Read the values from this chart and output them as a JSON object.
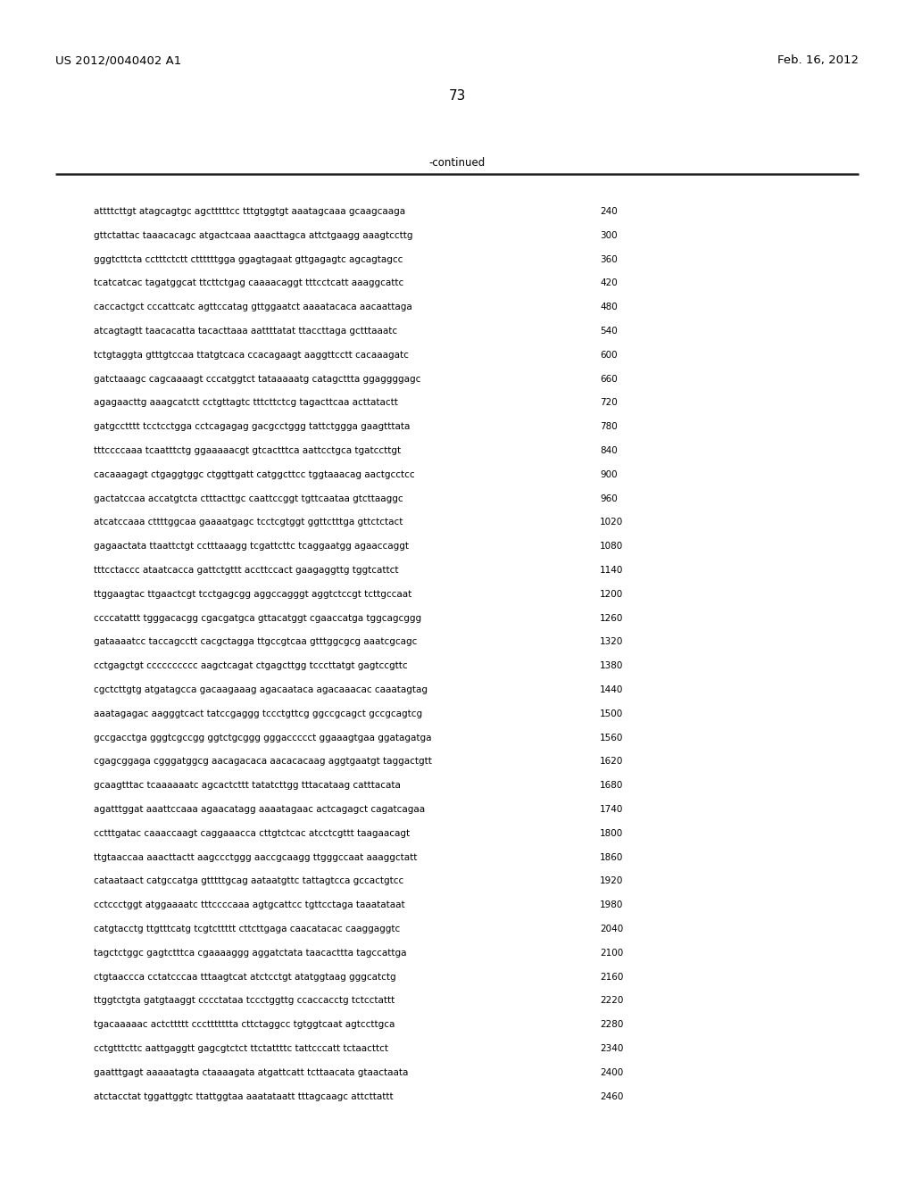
{
  "header_left": "US 2012/0040402 A1",
  "header_right": "Feb. 16, 2012",
  "page_number": "73",
  "continued_label": "-continued",
  "background_color": "#ffffff",
  "text_color": "#000000",
  "seq_font_size": 7.5,
  "header_font_size": 9.5,
  "page_num_font_size": 11,
  "continued_font_size": 8.5,
  "sequence_lines": [
    [
      "attttcttgt atagcagtgc agctttttcc tttgtggtgt aaatagcaaa gcaagcaaga",
      "240"
    ],
    [
      "gttctattac taaacacagc atgactcaaa aaacttagca attctgaagg aaagtccttg",
      "300"
    ],
    [
      "gggtcttcta cctttctctt cttttttgga ggagtagaat gttgagagtc agcagtagcc",
      "360"
    ],
    [
      "tcatcatcac tagatggcat ttcttctgag caaaacaggt tttcctcatt aaaggcattc",
      "420"
    ],
    [
      "caccactgct cccattcatc agttccatag gttggaatct aaaatacaca aacaattaga",
      "480"
    ],
    [
      "atcagtagtt taacacatta tacacttaaa aattttatat ttaccttaga gctttaaatc",
      "540"
    ],
    [
      "tctgtaggta gtttgtccaa ttatgtcaca ccacagaagt aaggttcctt cacaaagatc",
      "600"
    ],
    [
      "gatctaaagc cagcaaaagt cccatggtct tataaaaatg catagcttta ggaggggagc",
      "660"
    ],
    [
      "agagaacttg aaagcatctt cctgttagtc tttcttctcg tagacttcaa acttatactt",
      "720"
    ],
    [
      "gatgcctttt tcctcctgga cctcagagag gacgcctggg tattctggga gaagtttata",
      "780"
    ],
    [
      "tttccccaaa tcaatttctg ggaaaaacgt gtcactttca aattcctgca tgatccttgt",
      "840"
    ],
    [
      "cacaaagagt ctgaggtggc ctggttgatt catggcttcc tggtaaacag aactgcctcc",
      "900"
    ],
    [
      "gactatccaa accatgtcta ctttacttgc caattccggt tgttcaataa gtcttaaggc",
      "960"
    ],
    [
      "atcatccaaa cttttggcaa gaaaatgagc tcctcgtggt ggttctttga gttctctact",
      "1020"
    ],
    [
      "gagaactata ttaattctgt cctttaaagg tcgattcttc tcaggaatgg agaaccaggt",
      "1080"
    ],
    [
      "tttcctaccc ataatcacca gattctgttt accttccact gaagaggttg tggtcattct",
      "1140"
    ],
    [
      "ttggaagtac ttgaactcgt tcctgagcgg aggccagggt aggtctccgt tcttgccaat",
      "1200"
    ],
    [
      "ccccatattt tgggacacgg cgacgatgca gttacatggt cgaaccatga tggcagcggg",
      "1260"
    ],
    [
      "gataaaatcc taccagcctt cacgctagga ttgccgtcaa gtttggcgcg aaatcgcagc",
      "1320"
    ],
    [
      "cctgagctgt cccccccccc aagctcagat ctgagcttgg tcccttatgt gagtccgttc",
      "1380"
    ],
    [
      "cgctcttgtg atgatagcca gacaagaaag agacaataca agacaaacac caaatagtag",
      "1440"
    ],
    [
      "aaatagagac aagggtcact tatccgaggg tccctgttcg ggccgcagct gccgcagtcg",
      "1500"
    ],
    [
      "gccgacctga gggtcgccgg ggtctgcggg gggaccccct ggaaagtgaa ggatagatga",
      "1560"
    ],
    [
      "cgagcggaga cgggatggcg aacagacaca aacacacaag aggtgaatgt taggactgtt",
      "1620"
    ],
    [
      "gcaagtttac tcaaaaaatc agcactcttt tatatcttgg tttacataag catttacata",
      "1680"
    ],
    [
      "agatttggat aaattccaaa agaacatagg aaaatagaac actcagagct cagatcagaa",
      "1740"
    ],
    [
      "cctttgatac caaaccaagt caggaaacca cttgtctcac atcctcgttt taagaacagt",
      "1800"
    ],
    [
      "ttgtaaccaa aaacttactt aagccctggg aaccgcaagg ttgggccaat aaaggctatt",
      "1860"
    ],
    [
      "cataataact catgccatga gtttttgcag aataatgttc tattagtcca gccactgtcc",
      "1920"
    ],
    [
      "cctccctggt atggaaaatc tttccccaaa agtgcattcc tgttcctaga taaatataat",
      "1980"
    ],
    [
      "catgtacctg ttgtttcatg tcgtcttttt cttcttgaga caacatacac caaggaggtc",
      "2040"
    ],
    [
      "tagctctggc gagtctttca cgaaaaggg aggatctata taacacttta tagccattga",
      "2100"
    ],
    [
      "ctgtaaccca cctatcccaa tttaagtcat atctcctgt atatggtaag gggcatctg",
      "2160"
    ],
    [
      "ttggtctgta gatgtaaggt cccctataa tccctggttg ccaccacctg tctcctattt",
      "2220"
    ],
    [
      "tgacaaaaac actcttttt cccttttttta cttctaggcc tgtggtcaat agtccttgca",
      "2280"
    ],
    [
      "cctgtttcttc aattgaggtt gagcgtctct ttctattttc tattcccatt tctaacttct",
      "2340"
    ],
    [
      "gaatttgagt aaaaatagta ctaaaagata atgattcatt tcttaacata gtaactaata",
      "2400"
    ],
    [
      "atctacctat tggattggtc ttattggtaa aaatataatt tttagcaagc attcttattt",
      "2460"
    ]
  ]
}
